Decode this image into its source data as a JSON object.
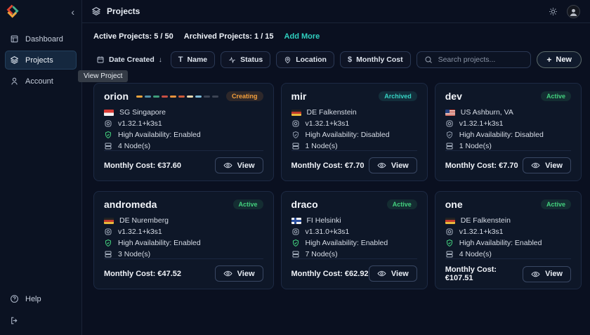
{
  "colors": {
    "accent_teal": "#2fd0c0",
    "status_active": "#43d17e",
    "status_archived": "#36d3c3",
    "status_creating": "#f0963c",
    "ha_enabled_green": "#43d17e",
    "page_background": "#0a1020",
    "card_background": "#0e1728"
  },
  "sidebar": {
    "collapse_icon": "‹",
    "items": [
      {
        "label": "Dashboard"
      },
      {
        "label": "Projects"
      },
      {
        "label": "Account"
      }
    ],
    "help_label": "Help"
  },
  "header": {
    "title": "Projects"
  },
  "stats": {
    "active_label": "Active Projects:",
    "active_value": "5 / 50",
    "archived_label": "Archived Projects:",
    "archived_value": "1 / 15",
    "add_more_label": "Add More"
  },
  "toolbar": {
    "sort_label": "Date Created",
    "sort_arrow": "↓",
    "filters": [
      {
        "icon": "text-icon",
        "glyph": "T",
        "label": "Name"
      },
      {
        "icon": "activity-icon",
        "label": "Status"
      },
      {
        "icon": "pin-icon",
        "label": "Location"
      },
      {
        "icon": "dollar-icon",
        "glyph": "$",
        "label": "Monthly Cost"
      }
    ],
    "search_placeholder": "Search projects...",
    "new_icon": "+",
    "new_label": "New"
  },
  "tooltip": {
    "label": "View Project"
  },
  "labels": {
    "view": "View"
  },
  "cards": [
    {
      "name": "orion",
      "status": "Creating",
      "status_key": "creating",
      "progress_segments": [
        "#e8a33d",
        "#4f8fa8",
        "#3f9e7a",
        "#c94f44",
        "#e8933d",
        "#cf5b3a",
        "#ead9ae",
        "#7fbcd9",
        "#3c4454",
        "#3c4454"
      ],
      "flag": "sg",
      "location": "SG Singapore",
      "version": "v1.32.1+k3s1",
      "ha": "High Availability: Enabled",
      "ha_key": "enabled",
      "nodes": "4 Node(s)",
      "cost_label": "Monthly Cost:",
      "cost_value": "€37.60"
    },
    {
      "name": "mir",
      "status": "Archived",
      "status_key": "archived",
      "flag": "de",
      "location": "DE Falkenstein",
      "version": "v1.32.1+k3s1",
      "ha": "High Availability: Disabled",
      "ha_key": "disabled",
      "nodes": "1 Node(s)",
      "cost_label": "Monthly Cost:",
      "cost_value": "€7.70"
    },
    {
      "name": "dev",
      "status": "Active",
      "status_key": "active",
      "flag": "us",
      "location": "US Ashburn, VA",
      "version": "v1.32.1+k3s1",
      "ha": "High Availability: Disabled",
      "ha_key": "disabled",
      "nodes": "1 Node(s)",
      "cost_label": "Monthly Cost:",
      "cost_value": "€7.70"
    },
    {
      "name": "andromeda",
      "status": "Active",
      "status_key": "active",
      "flag": "de",
      "location": "DE Nuremberg",
      "version": "v1.32.1+k3s1",
      "ha": "High Availability: Enabled",
      "ha_key": "enabled",
      "nodes": "3 Node(s)",
      "cost_label": "Monthly Cost:",
      "cost_value": "€47.52"
    },
    {
      "name": "draco",
      "status": "Active",
      "status_key": "active",
      "flag": "fi",
      "location": "FI Helsinki",
      "version": "v1.31.0+k3s1",
      "ha": "High Availability: Enabled",
      "ha_key": "enabled",
      "nodes": "7 Node(s)",
      "cost_label": "Monthly Cost:",
      "cost_value": "€62.92"
    },
    {
      "name": "one",
      "status": "Active",
      "status_key": "active",
      "flag": "de",
      "location": "DE Falkenstein",
      "version": "v1.32.1+k3s1",
      "ha": "High Availability: Enabled",
      "ha_key": "enabled",
      "nodes": "4 Node(s)",
      "cost_label": "Monthly Cost:",
      "cost_value": "€107.51"
    }
  ]
}
